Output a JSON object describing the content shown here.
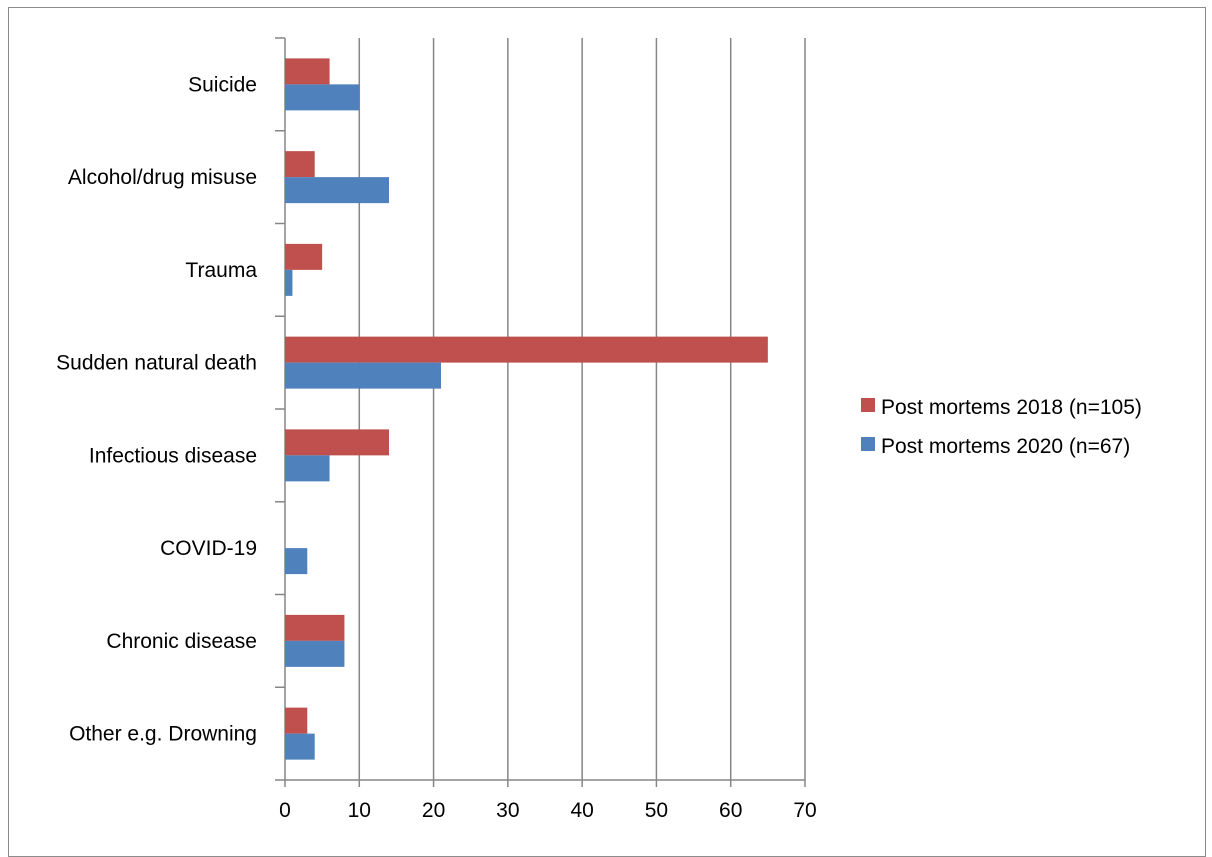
{
  "chart_data": {
    "type": "bar",
    "orientation": "horizontal",
    "categories": [
      "Suicide",
      "Alcohol/drug misuse",
      "Trauma",
      "Sudden natural death",
      "Infectious disease",
      "COVID-19",
      "Chronic disease",
      "Other e.g. Drowning"
    ],
    "series": [
      {
        "name": "Post mortems 2018 (n=105)",
        "color": "#c0504d",
        "values": [
          6,
          4,
          5,
          65,
          14,
          0,
          8,
          3
        ]
      },
      {
        "name": "Post mortems 2020 (n=67)",
        "color": "#4f81bd",
        "values": [
          10,
          14,
          1,
          21,
          6,
          3,
          8,
          4
        ]
      }
    ],
    "xlim": [
      0,
      70
    ],
    "xticks": [
      0,
      10,
      20,
      30,
      40,
      50,
      60,
      70
    ],
    "grid": "vertical major gridlines",
    "legend_position": "right",
    "title": "",
    "xlabel": "",
    "ylabel": ""
  }
}
